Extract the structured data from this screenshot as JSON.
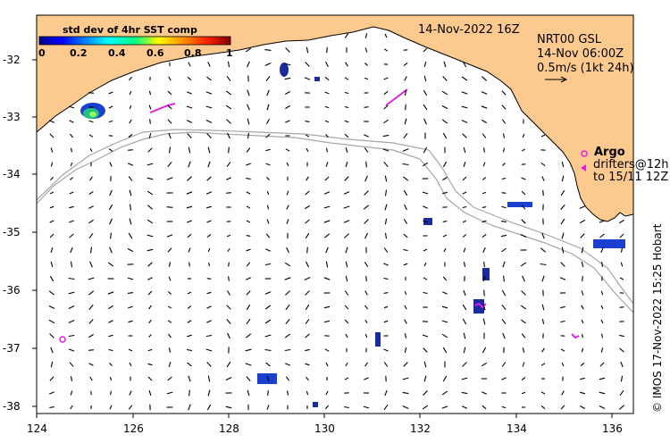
{
  "map": {
    "date_label": "14-Nov-2022 16Z",
    "product_line1": "NRT00 GSL",
    "product_line2": "14-Nov 06:00Z",
    "scale_text": "0.5m/s (1kt 24h)",
    "argo_label": "Argo",
    "drifters_line1": "drifters@12h",
    "drifters_line2": "to 15/11 12Z",
    "credit": "© IMOS 17-Nov-2022 15:25 Hobart",
    "land_color": "#fcc98e",
    "ocean_color": "#ffffff",
    "argo_color": "#e020e0",
    "isobath_color": "#a6a6a6"
  },
  "colorbar": {
    "title": "std dev of 4hr SST comp",
    "ticks": [
      "0",
      "0.2",
      "0.4",
      "0.6",
      "0.8",
      "1"
    ]
  },
  "axes": {
    "x_ticks": [
      "124",
      "126",
      "128",
      "130",
      "132",
      "134",
      "136"
    ],
    "y_ticks": [
      "-32",
      "-33",
      "-34",
      "-35",
      "-36",
      "-37",
      "-38"
    ],
    "lon_range": [
      124,
      136.6
    ],
    "lat_range": [
      -31.3,
      -38.1
    ]
  }
}
